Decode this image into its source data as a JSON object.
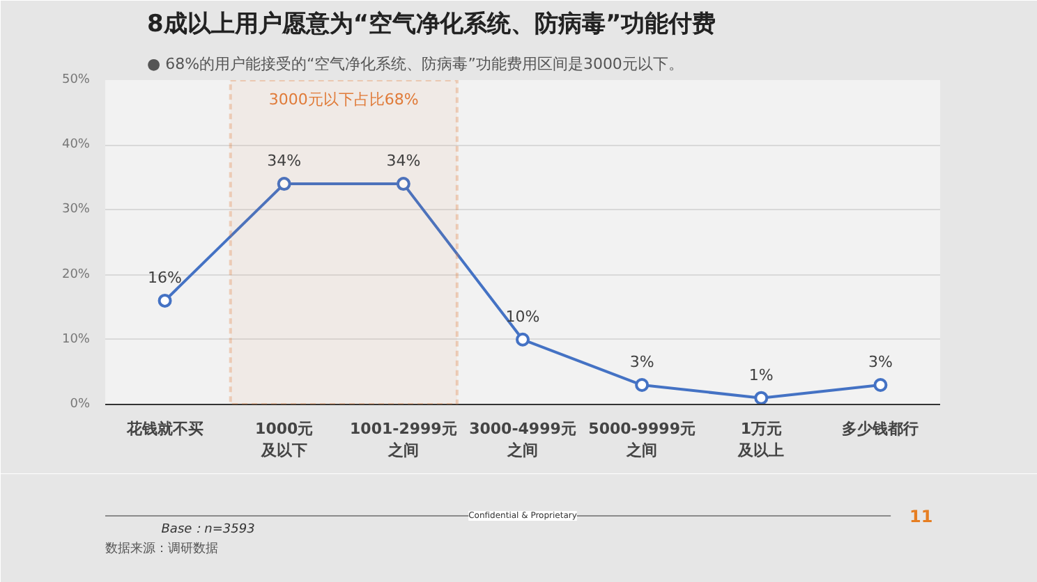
{
  "chart_data": {
    "type": "line",
    "title": "8成以上用户愿意为“空气净化系统、防病毒”功能付费",
    "subtitle": "● 68%的用户能接受的“空气净化系统、防病毒”功能费用区间是3000元以下。",
    "categories": [
      "花钱就不买",
      "1000元及以下",
      "1001-2999元之间",
      "3000-4999元之间",
      "5000-9999元之间",
      "1万元及以上",
      "多少钱都行"
    ],
    "series": [
      {
        "color": "#4472c4",
        "values": [
          16,
          34,
          34,
          10,
          3,
          1,
          3
        ],
        "value_labels": [
          "16%",
          "34%",
          "34%",
          "10%",
          "3%",
          "1%",
          "3%"
        ]
      }
    ],
    "ylim": [
      0,
      50
    ],
    "yticks": [
      {
        "value": 0,
        "label": "0%"
      },
      {
        "value": 10,
        "label": "10%"
      },
      {
        "value": 20,
        "label": "20%"
      },
      {
        "value": 30,
        "label": "30%"
      },
      {
        "value": 40,
        "label": "40%"
      },
      {
        "value": 50,
        "label": "50%"
      }
    ],
    "grid": "y",
    "marker": "circle",
    "line_style": "solid",
    "bands": [
      {
        "axis": "x",
        "from": "1000元及以下",
        "to": "1001-2999元之间",
        "label": "3000元以下占比68%",
        "color": "#e07b39"
      }
    ],
    "annotations": [
      "Base：n=3593",
      "数据来源：调研数据",
      "Confidential & Proprietary",
      "11"
    ]
  }
}
